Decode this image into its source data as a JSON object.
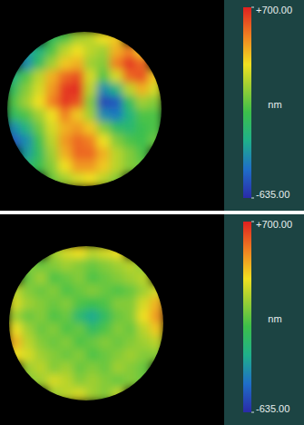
{
  "chart_data": [
    {
      "type": "heatmap",
      "cells": [
        [
          null,
          null,
          null,
          -100,
          0,
          150,
          200,
          300,
          350,
          null,
          null,
          null
        ],
        [
          null,
          -300,
          -200,
          0,
          200,
          300,
          200,
          150,
          400,
          500,
          350,
          null
        ],
        [
          null,
          -350,
          -100,
          150,
          350,
          400,
          150,
          100,
          500,
          650,
          550,
          null
        ],
        [
          -200,
          0,
          200,
          400,
          550,
          600,
          250,
          0,
          250,
          550,
          600,
          350
        ],
        [
          -100,
          100,
          250,
          450,
          650,
          680,
          200,
          -350,
          -200,
          200,
          400,
          250
        ],
        [
          0,
          150,
          300,
          500,
          650,
          600,
          100,
          -550,
          -500,
          -100,
          150,
          100
        ],
        [
          -100,
          0,
          150,
          300,
          500,
          350,
          150,
          -350,
          -400,
          -200,
          0,
          0
        ],
        [
          -350,
          -200,
          50,
          250,
          400,
          450,
          350,
          100,
          -100,
          -150,
          -50,
          0
        ],
        [
          -500,
          -350,
          -50,
          200,
          450,
          550,
          500,
          300,
          100,
          0,
          -50,
          50
        ],
        [
          null,
          -300,
          -100,
          150,
          400,
          550,
          550,
          400,
          200,
          100,
          0,
          null
        ],
        [
          null,
          -150,
          -50,
          100,
          300,
          450,
          450,
          350,
          200,
          100,
          50,
          null
        ],
        [
          null,
          null,
          null,
          50,
          150,
          250,
          300,
          200,
          100,
          null,
          null,
          null
        ]
      ],
      "zlim": [
        -635,
        700
      ],
      "zticks": [
        {
          "value": 700,
          "label": "+700.00"
        },
        {
          "value": -635,
          "label": "-635.00"
        }
      ],
      "zlabel": "nm"
    },
    {
      "type": "heatmap",
      "cells": [
        [
          null,
          null,
          null,
          150,
          250,
          300,
          200,
          250,
          300,
          null,
          null,
          null
        ],
        [
          null,
          100,
          50,
          100,
          150,
          100,
          50,
          100,
          150,
          200,
          100,
          null
        ],
        [
          null,
          50,
          150,
          0,
          50,
          100,
          0,
          50,
          100,
          150,
          200,
          null
        ],
        [
          200,
          100,
          50,
          100,
          0,
          50,
          100,
          50,
          0,
          50,
          150,
          250
        ],
        [
          250,
          150,
          100,
          50,
          100,
          0,
          -50,
          0,
          100,
          100,
          250,
          400
        ],
        [
          150,
          50,
          100,
          0,
          50,
          -150,
          -250,
          -100,
          50,
          100,
          300,
          450
        ],
        [
          300,
          150,
          50,
          100,
          0,
          50,
          -100,
          0,
          100,
          50,
          200,
          350
        ],
        [
          400,
          200,
          100,
          50,
          100,
          0,
          50,
          100,
          50,
          100,
          150,
          200
        ],
        [
          300,
          250,
          150,
          100,
          50,
          100,
          0,
          50,
          100,
          150,
          100,
          100
        ],
        [
          null,
          150,
          200,
          100,
          150,
          50,
          100,
          50,
          150,
          100,
          50,
          null
        ],
        [
          null,
          100,
          150,
          250,
          200,
          100,
          150,
          100,
          50,
          100,
          50,
          null
        ],
        [
          null,
          null,
          null,
          150,
          200,
          250,
          150,
          100,
          200,
          null,
          null,
          null
        ]
      ],
      "zlim": [
        -635,
        700
      ],
      "zticks": [
        {
          "value": 700,
          "label": "+700.00"
        },
        {
          "value": -635,
          "label": "-635.00"
        }
      ],
      "zlabel": "nm"
    }
  ]
}
